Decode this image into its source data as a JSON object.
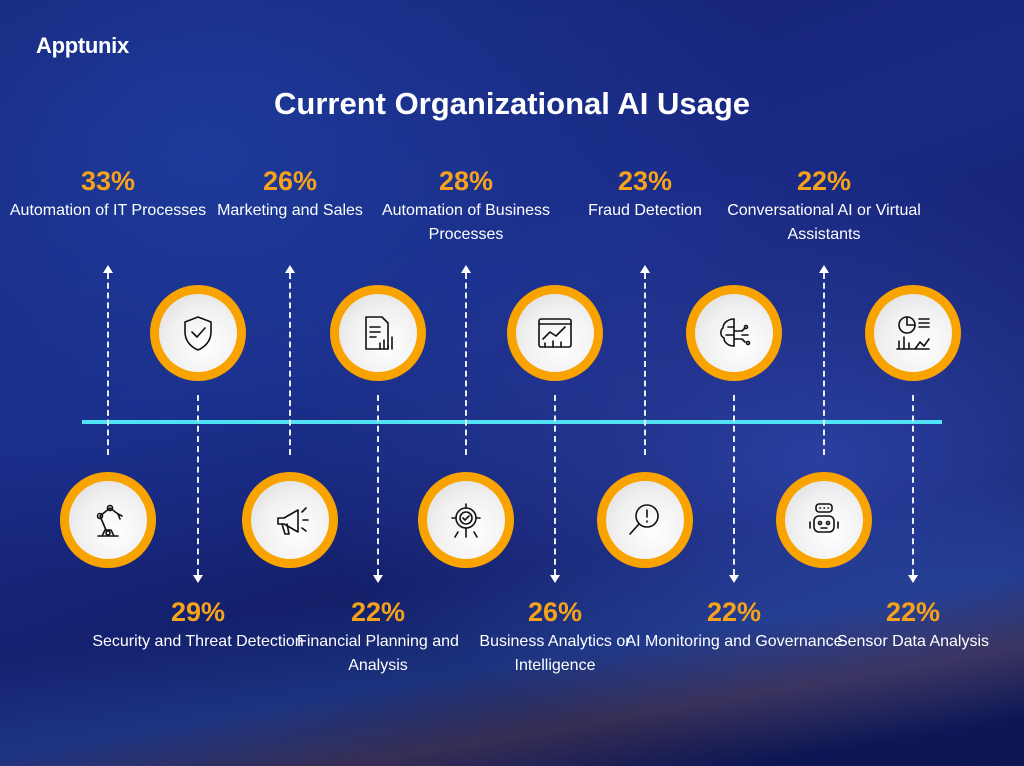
{
  "brand": "Apptunix",
  "title": "Current Organizational AI Usage",
  "top_items": [
    {
      "pct": "33%",
      "label": "Automation of IT Processes",
      "icon": "robot-arm-icon"
    },
    {
      "pct": "26%",
      "label": "Marketing and Sales",
      "icon": "megaphone-icon"
    },
    {
      "pct": "28%",
      "label": "Automation of Business Processes",
      "icon": "gear-check-icon"
    },
    {
      "pct": "23%",
      "label": "Fraud Detection",
      "icon": "magnifier-alert-icon"
    },
    {
      "pct": "22%",
      "label": "Conversational AI or Virtual Assistants",
      "icon": "chatbot-icon"
    }
  ],
  "bottom_items": [
    {
      "pct": "29%",
      "label": "Security and Threat Detection",
      "icon": "shield-check-icon"
    },
    {
      "pct": "22%",
      "label": "Financial Planning and Analysis",
      "icon": "report-chart-icon"
    },
    {
      "pct": "26%",
      "label": "Business Analytics or Intelligence",
      "icon": "analytics-dashboard-icon"
    },
    {
      "pct": "22%",
      "label": "AI Monitoring and Governance",
      "icon": "brain-circuit-icon"
    },
    {
      "pct": "22%",
      "label": "Sensor Data Analysis",
      "icon": "data-charts-icon"
    }
  ],
  "colors": {
    "accent": "#f9a300",
    "line": "#4fe3f5"
  }
}
